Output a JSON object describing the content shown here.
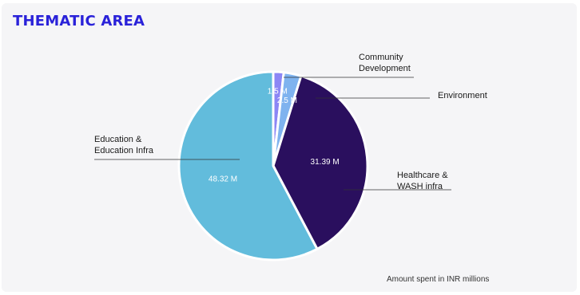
{
  "title": "THEMATIC AREA",
  "footnote": "Amount spent in INR millions",
  "colors": {
    "title": "#2a22d9",
    "ring": "#2f22d8",
    "community": "#8c86f5",
    "environment": "#7fb3ef",
    "healthcare": "#2a0f5e",
    "education": "#62bcdc"
  },
  "chart_data": {
    "type": "pie",
    "unit": "INR millions",
    "slices": [
      {
        "label": "Community Development",
        "label_lines": [
          "Community",
          "Development"
        ],
        "value": 1.5,
        "value_label": "1.5 M",
        "color": "#8c86f5"
      },
      {
        "label": "Environment",
        "label_lines": [
          "Environment"
        ],
        "value": 2.5,
        "value_label": "2.5 M",
        "color": "#7fb3ef"
      },
      {
        "label": "Healthcare & WASH infra",
        "label_lines": [
          "Healthcare &",
          "WASH infra"
        ],
        "value": 31.39,
        "value_label": "31.39 M",
        "color": "#2a0f5e"
      },
      {
        "label": "Education & Education Infra",
        "label_lines": [
          "Education &",
          "Education Infra"
        ],
        "value": 48.32,
        "value_label": "48.32 M",
        "color": "#62bcdc"
      }
    ]
  }
}
